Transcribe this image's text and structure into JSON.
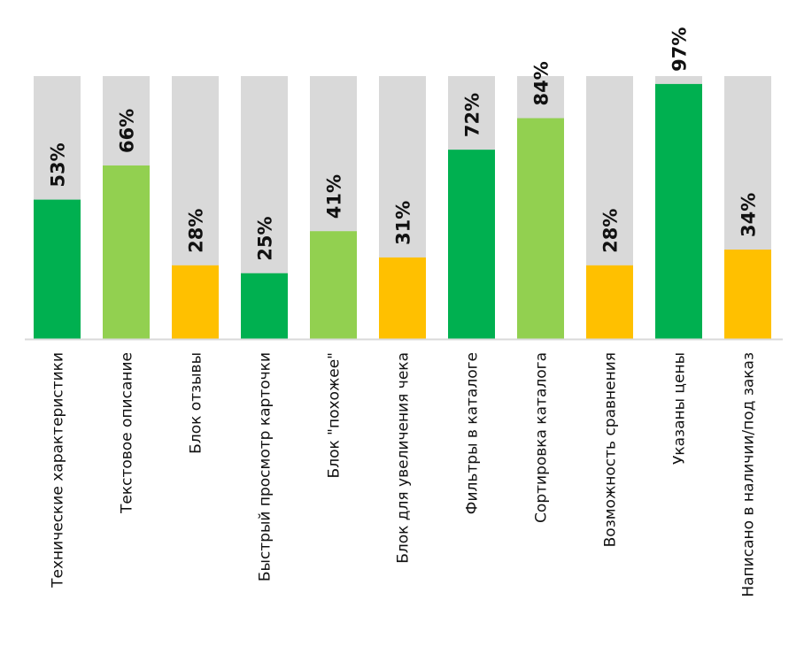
{
  "chart_data": {
    "type": "bar",
    "title": "",
    "xlabel": "",
    "ylabel": "",
    "ylim": [
      0,
      100
    ],
    "grid": false,
    "legend": "none",
    "background_bar_value": 100,
    "categories": [
      "Технические характеристики",
      "Текстовое описание",
      "Блок отзывы",
      "Быстрый просмотр карточки",
      "Блок \"похожее\"",
      "Блок для увеличения чека",
      "Фильтры в каталоге",
      "Сортировка каталога",
      "Возможность сравнения",
      "Указаны цены",
      "Написано в наличии/под заказ"
    ],
    "values": [
      53,
      66,
      28,
      25,
      41,
      31,
      72,
      84,
      28,
      97,
      34
    ],
    "value_labels": [
      "53%",
      "66%",
      "28%",
      "25%",
      "41%",
      "31%",
      "72%",
      "84%",
      "28%",
      "97%",
      "34%"
    ],
    "bar_colors": [
      "#00b050",
      "#92d050",
      "#ffc000",
      "#00b050",
      "#92d050",
      "#ffc000",
      "#00b050",
      "#92d050",
      "#ffc000",
      "#00b050",
      "#ffc000"
    ],
    "background_color": "#d9d9d9",
    "axis_color": "#d9d9d9"
  }
}
